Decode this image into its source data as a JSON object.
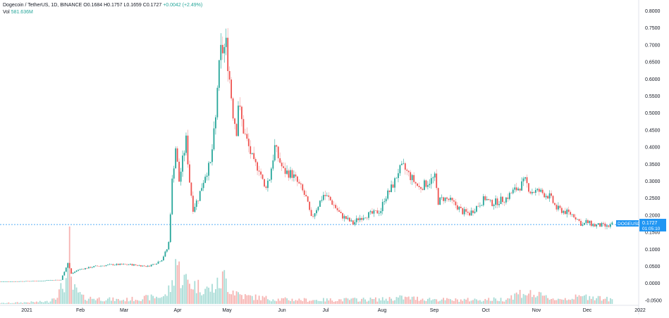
{
  "legend": {
    "title": "Dogecoin / TetherUS, 1D, BINANCE",
    "open": "O0.1684",
    "high": "H0.1757",
    "low": "L0.1659",
    "close": "C0.1727",
    "change": "+0.0042 (+2.49%)",
    "volume_label": "Vol",
    "volume_value": "581.636M"
  },
  "price_tag": {
    "symbol": "DOGEUSDT",
    "price": "0.1727",
    "countdown": "01:05:10"
  },
  "colors": {
    "up": "#26a69a",
    "down": "#ef5350",
    "wick_down": "#ef9a9a",
    "price_line": "#2196f3",
    "vol_up": "#a8dcd6",
    "vol_down": "#f6b3b1"
  },
  "chart_data": {
    "type": "candlestick",
    "symbol": "DOGEUSDT",
    "timeframe": "1D",
    "y_ticks": [
      "0.8000",
      "0.7500",
      "0.7000",
      "0.6500",
      "0.6000",
      "0.5500",
      "0.5000",
      "0.4500",
      "0.4000",
      "0.3500",
      "0.3000",
      "0.2500",
      "0.2000",
      "0.1500",
      "0.1000",
      "0.0500",
      "0.0000",
      "-0.0500"
    ],
    "ylim": [
      -0.075,
      0.825
    ],
    "x_ticks": [
      "2021",
      "Feb",
      "Mar",
      "Apr",
      "May",
      "Jun",
      "Jul",
      "Aug",
      "Sep",
      "Oct",
      "Nov",
      "Dec",
      "2022"
    ],
    "last_price": 0.1727,
    "price_anchors": [
      [
        0,
        0.0048
      ],
      [
        24,
        0.0072
      ],
      [
        28,
        0.0095
      ],
      [
        35,
        0.01
      ],
      [
        39,
        0.06
      ],
      [
        41,
        0.028
      ],
      [
        45,
        0.04
      ],
      [
        55,
        0.05
      ],
      [
        65,
        0.055
      ],
      [
        75,
        0.055
      ],
      [
        85,
        0.05
      ],
      [
        90,
        0.06
      ],
      [
        93,
        0.07
      ],
      [
        96,
        0.1
      ],
      [
        97,
        0.12
      ],
      [
        99,
        0.3
      ],
      [
        101,
        0.4
      ],
      [
        103,
        0.3
      ],
      [
        107,
        0.42
      ],
      [
        109,
        0.3
      ],
      [
        111,
        0.22
      ],
      [
        114,
        0.25
      ],
      [
        118,
        0.32
      ],
      [
        121,
        0.35
      ],
      [
        124,
        0.48
      ],
      [
        125,
        0.58
      ],
      [
        127,
        0.68
      ],
      [
        129,
        0.69
      ],
      [
        130,
        0.7
      ],
      [
        132,
        0.6
      ],
      [
        134,
        0.5
      ],
      [
        136,
        0.45
      ],
      [
        137,
        0.53
      ],
      [
        140,
        0.45
      ],
      [
        143,
        0.4
      ],
      [
        146,
        0.35
      ],
      [
        149,
        0.34
      ],
      [
        152,
        0.28
      ],
      [
        155,
        0.31
      ],
      [
        158,
        0.4
      ],
      [
        160,
        0.37
      ],
      [
        163,
        0.33
      ],
      [
        168,
        0.32
      ],
      [
        173,
        0.28
      ],
      [
        176,
        0.25
      ],
      [
        179,
        0.19
      ],
      [
        182,
        0.22
      ],
      [
        186,
        0.26
      ],
      [
        189,
        0.25
      ],
      [
        192,
        0.23
      ],
      [
        196,
        0.2
      ],
      [
        199,
        0.19
      ],
      [
        203,
        0.175
      ],
      [
        206,
        0.19
      ],
      [
        210,
        0.2
      ],
      [
        215,
        0.205
      ],
      [
        219,
        0.215
      ],
      [
        221,
        0.25
      ],
      [
        224,
        0.27
      ],
      [
        227,
        0.3
      ],
      [
        229,
        0.33
      ],
      [
        232,
        0.34
      ],
      [
        235,
        0.32
      ],
      [
        238,
        0.3
      ],
      [
        241,
        0.28
      ],
      [
        244,
        0.29
      ],
      [
        247,
        0.3
      ],
      [
        250,
        0.31
      ],
      [
        252,
        0.24
      ],
      [
        255,
        0.25
      ],
      [
        258,
        0.245
      ],
      [
        262,
        0.23
      ],
      [
        266,
        0.21
      ],
      [
        270,
        0.205
      ],
      [
        275,
        0.23
      ],
      [
        279,
        0.25
      ],
      [
        282,
        0.235
      ],
      [
        286,
        0.24
      ],
      [
        291,
        0.25
      ],
      [
        295,
        0.27
      ],
      [
        298,
        0.28
      ],
      [
        300,
        0.29
      ],
      [
        302,
        0.3
      ],
      [
        305,
        0.27
      ],
      [
        310,
        0.27
      ],
      [
        316,
        0.255
      ],
      [
        320,
        0.22
      ],
      [
        325,
        0.21
      ],
      [
        330,
        0.2
      ],
      [
        335,
        0.17
      ],
      [
        337,
        0.18
      ],
      [
        342,
        0.17
      ],
      [
        346,
        0.17
      ],
      [
        349,
        0.165
      ],
      [
        352,
        0.1727
      ]
    ],
    "volume_anchors": [
      [
        0,
        0.01
      ],
      [
        28,
        0.03
      ],
      [
        34,
        0.15
      ],
      [
        40,
        0.38
      ],
      [
        41,
        0.3
      ],
      [
        42,
        0.2
      ],
      [
        48,
        0.08
      ],
      [
        70,
        0.05
      ],
      [
        95,
        0.1
      ],
      [
        99,
        0.25
      ],
      [
        101,
        0.58
      ],
      [
        104,
        0.35
      ],
      [
        107,
        0.3
      ],
      [
        111,
        0.25
      ],
      [
        115,
        0.22
      ],
      [
        120,
        0.18
      ],
      [
        126,
        0.25
      ],
      [
        129,
        0.35
      ],
      [
        132,
        0.2
      ],
      [
        140,
        0.1
      ],
      [
        150,
        0.08
      ],
      [
        160,
        0.06
      ],
      [
        180,
        0.05
      ],
      [
        220,
        0.06
      ],
      [
        230,
        0.08
      ],
      [
        260,
        0.05
      ],
      [
        290,
        0.06
      ],
      [
        300,
        0.15
      ],
      [
        320,
        0.06
      ],
      [
        340,
        0.1
      ],
      [
        352,
        0.05
      ]
    ],
    "volume_spikes": [
      [
        40,
        1.0
      ],
      [
        101,
        0.58
      ],
      [
        128,
        0.42
      ],
      [
        101,
        0.58
      ]
    ]
  }
}
